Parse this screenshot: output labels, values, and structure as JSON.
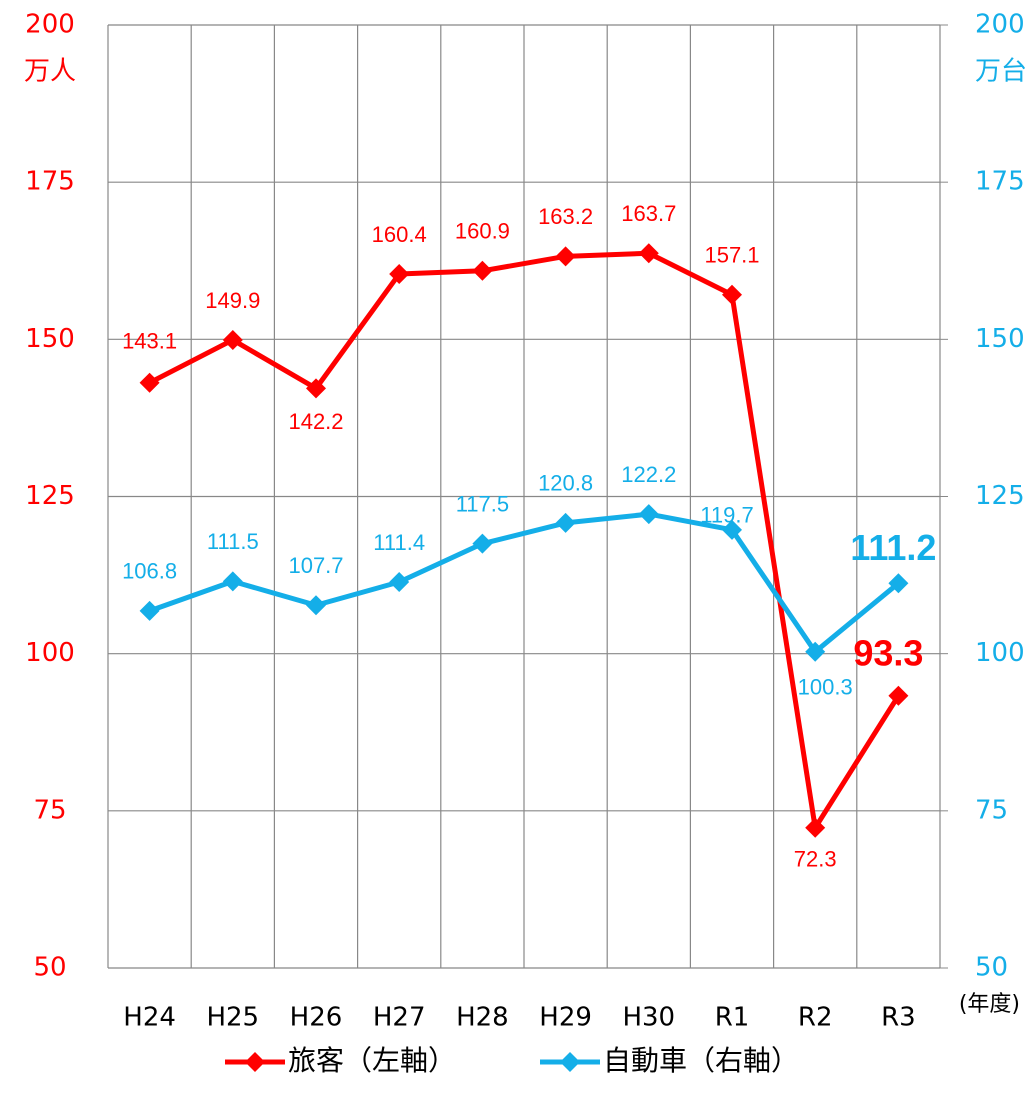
{
  "chart_data": {
    "type": "line",
    "categories": [
      "H24",
      "H25",
      "H26",
      "H27",
      "H28",
      "H29",
      "H30",
      "R1",
      "R2",
      "R3"
    ],
    "series": [
      {
        "name": "旅客（左軸）",
        "color": "#ff0000",
        "values": [
          143.1,
          149.9,
          142.2,
          160.4,
          160.9,
          163.2,
          163.7,
          157.1,
          72.3,
          93.3
        ]
      },
      {
        "name": "自動車（右軸）",
        "color": "#14aee8",
        "axis": "y2",
        "values": [
          106.8,
          111.5,
          107.7,
          111.4,
          117.5,
          120.8,
          122.2,
          119.7,
          100.3,
          111.2
        ]
      }
    ],
    "ylabel": "万人",
    "y2label": "万台",
    "xlabel": "(年度)",
    "ylim": [
      50,
      200
    ],
    "yticks": [
      50,
      75,
      100,
      125,
      150,
      175,
      200
    ],
    "y2lim": [
      50,
      200
    ],
    "y2ticks": [
      50,
      75,
      100,
      125,
      150,
      175,
      200
    ],
    "grid": true,
    "legend": "bottom"
  }
}
